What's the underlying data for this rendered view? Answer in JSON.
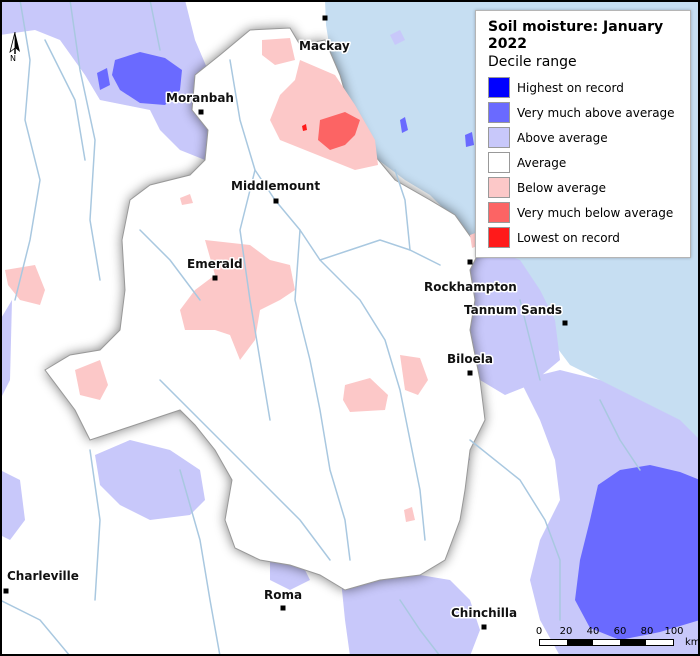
{
  "legend": {
    "title": "Soil moisture: January 2022",
    "subtitle": "Decile range",
    "items": [
      {
        "label": "Highest on record",
        "color": "#0000ff"
      },
      {
        "label": "Very much above average",
        "color": "#6a6aff"
      },
      {
        "label": "Above average",
        "color": "#c8c8fa"
      },
      {
        "label": "Average",
        "color": "#ffffff"
      },
      {
        "label": "Below average",
        "color": "#fcc8c8"
      },
      {
        "label": "Very much below average",
        "color": "#fc6464"
      },
      {
        "label": "Lowest on record",
        "color": "#ff1a1a"
      }
    ]
  },
  "towns": [
    {
      "name": "Mackay"
    },
    {
      "name": "Moranbah"
    },
    {
      "name": "Middlemount"
    },
    {
      "name": "Emerald"
    },
    {
      "name": "Rockhampton"
    },
    {
      "name": "Tannum Sands"
    },
    {
      "name": "Biloela"
    },
    {
      "name": "Charleville"
    },
    {
      "name": "Roma"
    },
    {
      "name": "Chinchilla"
    }
  ],
  "north_arrow": {
    "letter": "N"
  },
  "scale_bar": {
    "ticks": [
      "0",
      "20",
      "40",
      "60",
      "80",
      "100"
    ],
    "unit": "km"
  },
  "colors": {
    "ocean": "#c6def2",
    "rivers": "#a9c8e0",
    "land": "#ffffff"
  }
}
